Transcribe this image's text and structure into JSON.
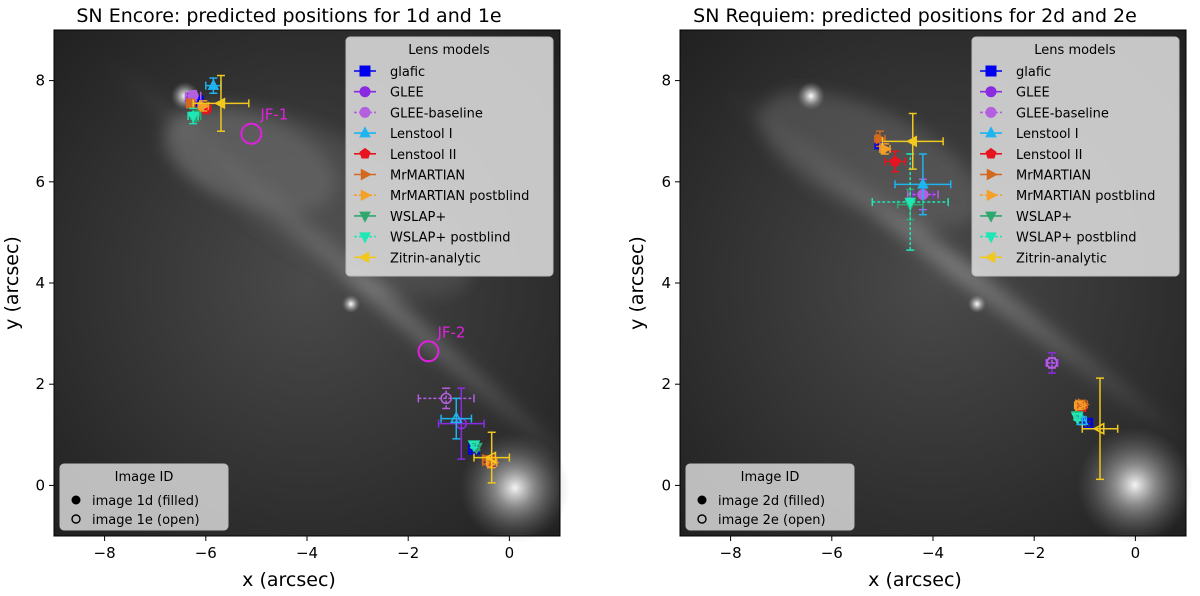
{
  "chart_data": [
    {
      "type": "scatter",
      "title": "SN Encore: predicted positions for 1d and 1e",
      "xlabel": "x (arcsec)",
      "ylabel": "y (arcsec)",
      "xlim": [
        -9.0,
        1.0
      ],
      "ylim": [
        -1.0,
        9.0
      ],
      "xticks": [
        -8,
        -6,
        -4,
        -2,
        0
      ],
      "yticks": [
        0,
        2,
        4,
        6,
        8
      ],
      "legend_title": "Lens models",
      "legend_position": "top-right",
      "image_legend": {
        "title": "Image ID",
        "position": "lower-left",
        "filled_label": "image 1d (filled)",
        "open_label": "image 1e (open)"
      },
      "annotations": [
        {
          "text": "JF-1",
          "x": -5.1,
          "y": 6.95
        },
        {
          "text": "JF-2",
          "x": -1.6,
          "y": 2.65
        }
      ],
      "series": [
        {
          "name": "glafic",
          "points": [
            {
              "image": "d",
              "x": -6.15,
              "y": 7.6,
              "xerr": 0.05,
              "yerr": 0.05
            },
            {
              "image": "e",
              "x": -0.7,
              "y": 0.72,
              "xerr": 0.05,
              "yerr": 0.05
            }
          ]
        },
        {
          "name": "GLEE",
          "points": [
            {
              "image": "d",
              "x": -6.3,
              "y": 7.65,
              "xerr": 0.1,
              "yerr": 0.1
            },
            {
              "image": "e",
              "x": -0.95,
              "y": 1.22,
              "xerr": 0.45,
              "yerr": 0.7
            }
          ]
        },
        {
          "name": "GLEE-baseline",
          "points": [
            {
              "image": "d",
              "x": -6.25,
              "y": 7.7,
              "xerr": 0.15,
              "yerr": 0.1
            },
            {
              "image": "e",
              "x": -1.25,
              "y": 1.72,
              "xerr": 0.55,
              "yerr": 0.2
            }
          ]
        },
        {
          "name": "Lenstool I",
          "points": [
            {
              "image": "d",
              "x": -5.85,
              "y": 7.9,
              "xerr": 0.15,
              "yerr": 0.15
            },
            {
              "image": "e",
              "x": -1.05,
              "y": 1.32,
              "xerr": 0.3,
              "yerr": 0.4
            }
          ]
        },
        {
          "name": "Lenstool II",
          "points": [
            {
              "image": "d",
              "x": -6.0,
              "y": 7.45,
              "xerr": 0.1,
              "yerr": 0.1
            },
            {
              "image": "e",
              "x": -0.38,
              "y": 0.48,
              "xerr": 0.08,
              "yerr": 0.1
            }
          ]
        },
        {
          "name": "MrMARTIAN",
          "points": [
            {
              "image": "d",
              "x": -6.3,
              "y": 7.55,
              "xerr": 0.08,
              "yerr": 0.08
            },
            {
              "image": "e",
              "x": -0.45,
              "y": 0.5,
              "xerr": 0.08,
              "yerr": 0.08
            }
          ]
        },
        {
          "name": "MrMARTIAN postblind",
          "points": [
            {
              "image": "d",
              "x": -6.05,
              "y": 7.5,
              "xerr": 0.1,
              "yerr": 0.1
            },
            {
              "image": "e",
              "x": -0.35,
              "y": 0.45,
              "xerr": 0.1,
              "yerr": 0.1
            }
          ]
        },
        {
          "name": "WSLAP+",
          "points": [
            {
              "image": "d",
              "x": -6.2,
              "y": 7.3,
              "xerr": 0.1,
              "yerr": 0.1
            },
            {
              "image": "e",
              "x": -0.65,
              "y": 0.75,
              "xerr": 0.05,
              "yerr": 0.05
            }
          ]
        },
        {
          "name": "WSLAP+ postblind",
          "points": [
            {
              "image": "d",
              "x": -6.25,
              "y": 7.3,
              "xerr": 0.1,
              "yerr": 0.15
            },
            {
              "image": "e",
              "x": -0.7,
              "y": 0.8,
              "xerr": 0.05,
              "yerr": 0.05
            }
          ]
        },
        {
          "name": "Zitrin-analytic",
          "points": [
            {
              "image": "d",
              "x": -5.7,
              "y": 7.55,
              "xerr": 0.55,
              "yerr": 0.55
            },
            {
              "image": "e",
              "x": -0.35,
              "y": 0.55,
              "xerr": 0.35,
              "yerr": 0.5
            }
          ]
        }
      ]
    },
    {
      "type": "scatter",
      "title": "SN Requiem: predicted positions for 2d and 2e",
      "xlabel": "x (arcsec)",
      "ylabel": "y (arcsec)",
      "xlim": [
        -9.0,
        1.0
      ],
      "ylim": [
        -1.0,
        9.0
      ],
      "xticks": [
        -8,
        -6,
        -4,
        -2,
        0
      ],
      "yticks": [
        0,
        2,
        4,
        6,
        8
      ],
      "legend_title": "Lens models",
      "legend_position": "top-right",
      "image_legend": {
        "title": "Image ID",
        "position": "lower-left",
        "filled_label": "image 2d (filled)",
        "open_label": "image 2e (open)"
      },
      "annotations": [],
      "series": [
        {
          "name": "glafic",
          "points": [
            {
              "image": "d",
              "x": -5.05,
              "y": 6.75,
              "xerr": 0.08,
              "yerr": 0.08
            },
            {
              "image": "e",
              "x": -0.95,
              "y": 1.22,
              "xerr": 0.08,
              "yerr": 0.08
            }
          ]
        },
        {
          "name": "GLEE",
          "points": [
            {
              "image": "d",
              "x": -4.2,
              "y": 5.75,
              "xerr": 0.2,
              "yerr": 0.3
            },
            {
              "image": "e",
              "x": -1.65,
              "y": 2.42,
              "xerr": 0.12,
              "yerr": 0.2
            }
          ]
        },
        {
          "name": "GLEE-baseline",
          "points": [
            {
              "image": "d",
              "x": -4.2,
              "y": 5.75,
              "xerr": 0.3,
              "yerr": 0.3
            },
            {
              "image": "e",
              "x": -1.65,
              "y": 2.42,
              "xerr": 0.1,
              "yerr": 0.1
            }
          ]
        },
        {
          "name": "Lenstool I",
          "points": [
            {
              "image": "d",
              "x": -4.2,
              "y": 5.95,
              "xerr": 0.55,
              "yerr": 0.6
            },
            {
              "image": "e",
              "x": -1.05,
              "y": 1.28,
              "xerr": 0.08,
              "yerr": 0.08
            }
          ]
        },
        {
          "name": "Lenstool II",
          "points": [
            {
              "image": "d",
              "x": -4.75,
              "y": 6.4,
              "xerr": 0.2,
              "yerr": 0.2
            },
            {
              "image": "e",
              "x": -1.05,
              "y": 1.55,
              "xerr": 0.05,
              "yerr": 0.05
            }
          ]
        },
        {
          "name": "MrMARTIAN",
          "points": [
            {
              "image": "d",
              "x": -5.05,
              "y": 6.85,
              "xerr": 0.1,
              "yerr": 0.15
            },
            {
              "image": "e",
              "x": -1.05,
              "y": 1.6,
              "xerr": 0.1,
              "yerr": 0.08
            }
          ]
        },
        {
          "name": "MrMARTIAN postblind",
          "points": [
            {
              "image": "d",
              "x": -4.95,
              "y": 6.65,
              "xerr": 0.1,
              "yerr": 0.1
            },
            {
              "image": "e",
              "x": -1.1,
              "y": 1.58,
              "xerr": 0.1,
              "yerr": 0.08
            }
          ]
        },
        {
          "name": "WSLAP+",
          "points": [
            {
              "image": "d",
              "x": -4.45,
              "y": 5.55,
              "xerr": 0.25,
              "yerr": 0.3
            },
            {
              "image": "e",
              "x": -1.15,
              "y": 1.38,
              "xerr": 0.05,
              "yerr": 0.05
            }
          ]
        },
        {
          "name": "WSLAP+ postblind",
          "points": [
            {
              "image": "d",
              "x": -4.45,
              "y": 5.6,
              "xerr": 0.75,
              "yerr": 0.95
            },
            {
              "image": "e",
              "x": -1.15,
              "y": 1.35,
              "xerr": 0.05,
              "yerr": 0.05
            }
          ]
        },
        {
          "name": "Zitrin-analytic",
          "points": [
            {
              "image": "d",
              "x": -4.4,
              "y": 6.8,
              "xerr": 0.6,
              "yerr": 0.55
            },
            {
              "image": "e",
              "x": -0.7,
              "y": 1.12,
              "xerr": 0.35,
              "yerr": 1.0
            }
          ]
        }
      ]
    }
  ],
  "series_styles": [
    {
      "name": "glafic",
      "color": "#0000ee",
      "marker": "square",
      "dashed": false
    },
    {
      "name": "GLEE",
      "color": "#8a2be2",
      "marker": "circle",
      "dashed": false
    },
    {
      "name": "GLEE-baseline",
      "color": "#b45ee0",
      "marker": "circle",
      "dashed": true
    },
    {
      "name": "Lenstool I",
      "color": "#1eb4ef",
      "marker": "triangle-up",
      "dashed": false
    },
    {
      "name": "Lenstool II",
      "color": "#e6141e",
      "marker": "pentagon",
      "dashed": false
    },
    {
      "name": "MrMARTIAN",
      "color": "#d2691e",
      "marker": "triangle-right",
      "dashed": false
    },
    {
      "name": "MrMARTIAN postblind",
      "color": "#f5a028",
      "marker": "triangle-right",
      "dashed": true
    },
    {
      "name": "WSLAP+",
      "color": "#2ea86e",
      "marker": "triangle-down",
      "dashed": false
    },
    {
      "name": "WSLAP+ postblind",
      "color": "#1ee6b4",
      "marker": "triangle-down",
      "dashed": true
    },
    {
      "name": "Zitrin-analytic",
      "color": "#f0c81e",
      "marker": "triangle-left",
      "dashed": false
    }
  ],
  "annotation_color": "#e020e0"
}
